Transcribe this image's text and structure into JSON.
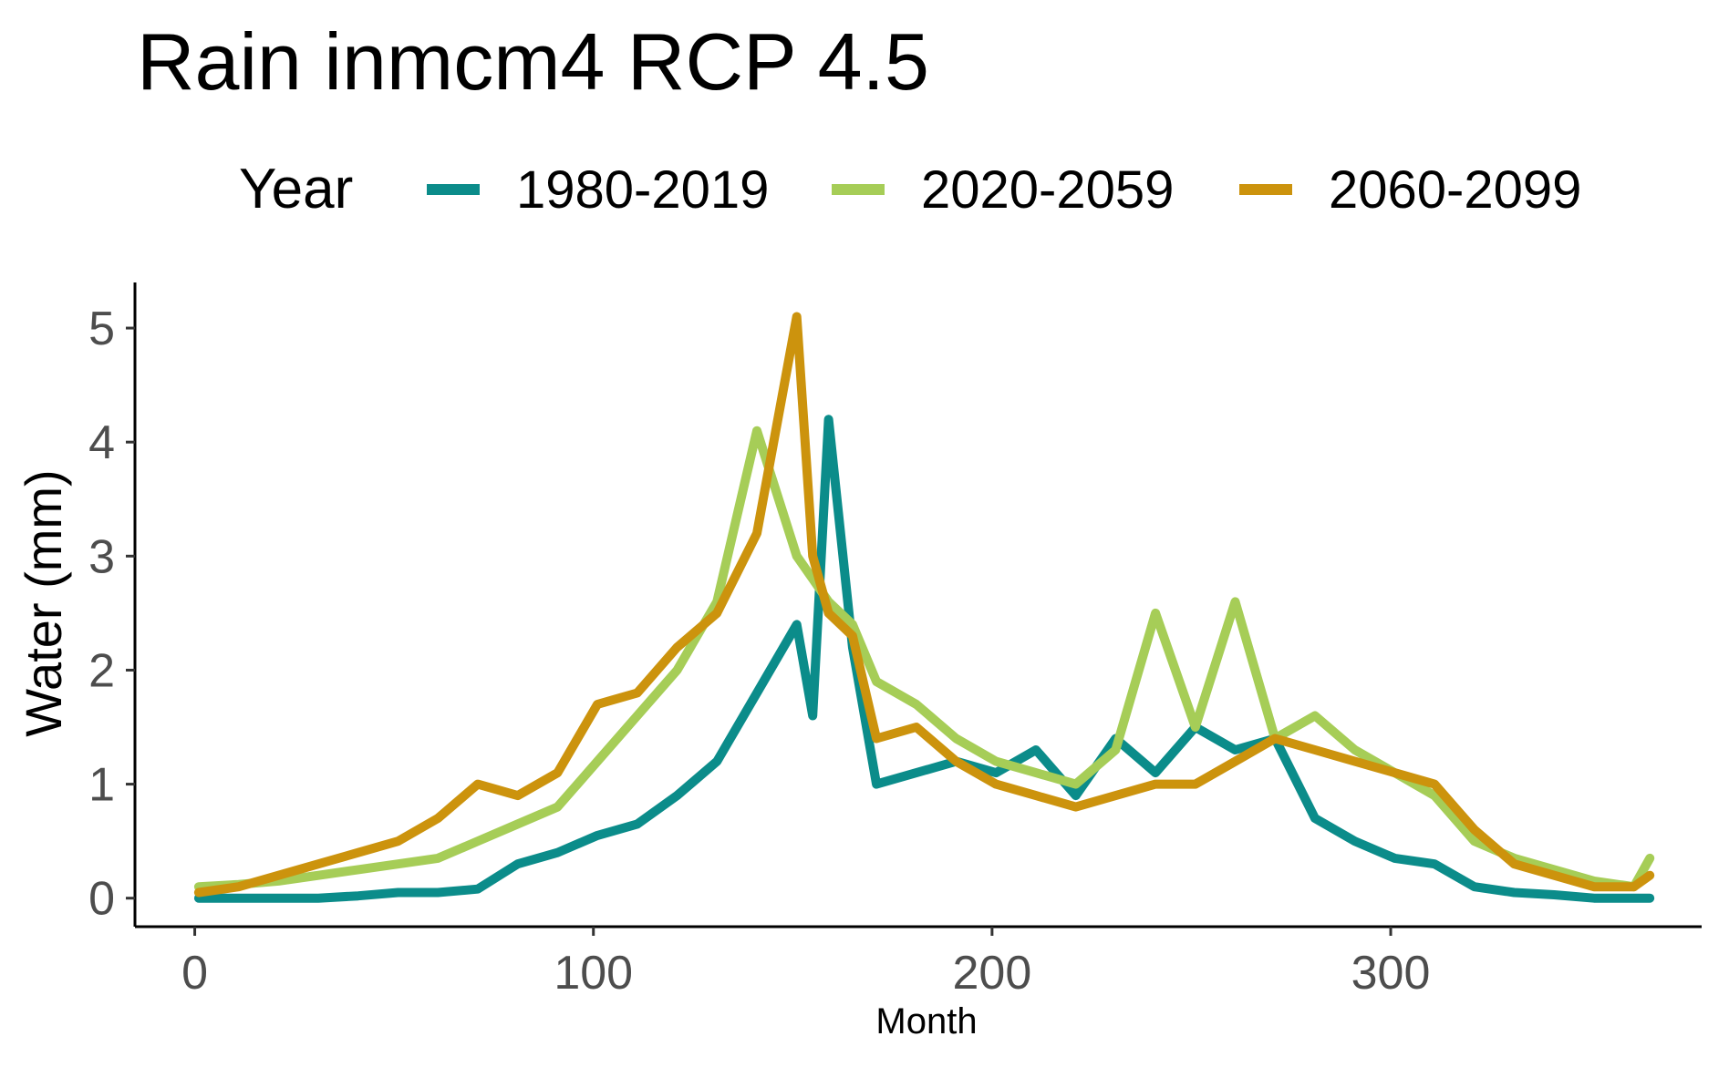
{
  "chart_data": {
    "type": "line",
    "title": "Rain inmcm4 RCP 4.5",
    "xlabel": "Month",
    "ylabel": "Water (mm)",
    "xlim": [
      -15,
      378
    ],
    "ylim": [
      -0.25,
      5.4
    ],
    "x_ticks": [
      0,
      100,
      200,
      300
    ],
    "y_ticks": [
      0,
      1,
      2,
      3,
      4,
      5
    ],
    "grid": false,
    "legend": {
      "title": "Year",
      "position": "top",
      "entries": [
        "1980-2019",
        "2020-2059",
        "2060-2099"
      ]
    },
    "x": [
      1,
      11,
      21,
      31,
      41,
      51,
      61,
      71,
      81,
      91,
      101,
      111,
      121,
      131,
      141,
      151,
      155,
      159,
      165,
      171,
      181,
      191,
      201,
      211,
      221,
      231,
      241,
      251,
      261,
      271,
      281,
      291,
      301,
      311,
      321,
      331,
      341,
      351,
      361,
      365
    ],
    "series": [
      {
        "name": "1980-2019",
        "color": "#0b8c8a",
        "values": [
          0.0,
          0.0,
          0.0,
          0.0,
          0.02,
          0.05,
          0.05,
          0.08,
          0.3,
          0.4,
          0.55,
          0.65,
          0.9,
          1.2,
          1.8,
          2.4,
          1.6,
          4.2,
          2.2,
          1.0,
          1.1,
          1.2,
          1.1,
          1.3,
          0.9,
          1.4,
          1.1,
          1.5,
          1.3,
          1.4,
          0.7,
          0.5,
          0.35,
          0.3,
          0.1,
          0.05,
          0.03,
          0.0,
          0.0,
          0.0
        ]
      },
      {
        "name": "2020-2059",
        "color": "#a6cd57",
        "values": [
          0.1,
          0.12,
          0.15,
          0.2,
          0.25,
          0.3,
          0.35,
          0.5,
          0.65,
          0.8,
          1.2,
          1.6,
          2.0,
          2.6,
          4.1,
          3.0,
          2.8,
          2.6,
          2.4,
          1.9,
          1.7,
          1.4,
          1.2,
          1.1,
          1.0,
          1.3,
          2.5,
          1.5,
          2.6,
          1.4,
          1.6,
          1.3,
          1.1,
          0.9,
          0.5,
          0.35,
          0.25,
          0.15,
          0.1,
          0.35
        ]
      },
      {
        "name": "2060-2099",
        "color": "#cc930d",
        "values": [
          0.05,
          0.1,
          0.2,
          0.3,
          0.4,
          0.5,
          0.7,
          1.0,
          0.9,
          1.1,
          1.7,
          1.8,
          2.2,
          2.5,
          3.2,
          5.1,
          3.0,
          2.5,
          2.3,
          1.4,
          1.5,
          1.2,
          1.0,
          0.9,
          0.8,
          0.9,
          1.0,
          1.0,
          1.2,
          1.4,
          1.3,
          1.2,
          1.1,
          1.0,
          0.6,
          0.3,
          0.2,
          0.1,
          0.1,
          0.2
        ]
      }
    ]
  }
}
